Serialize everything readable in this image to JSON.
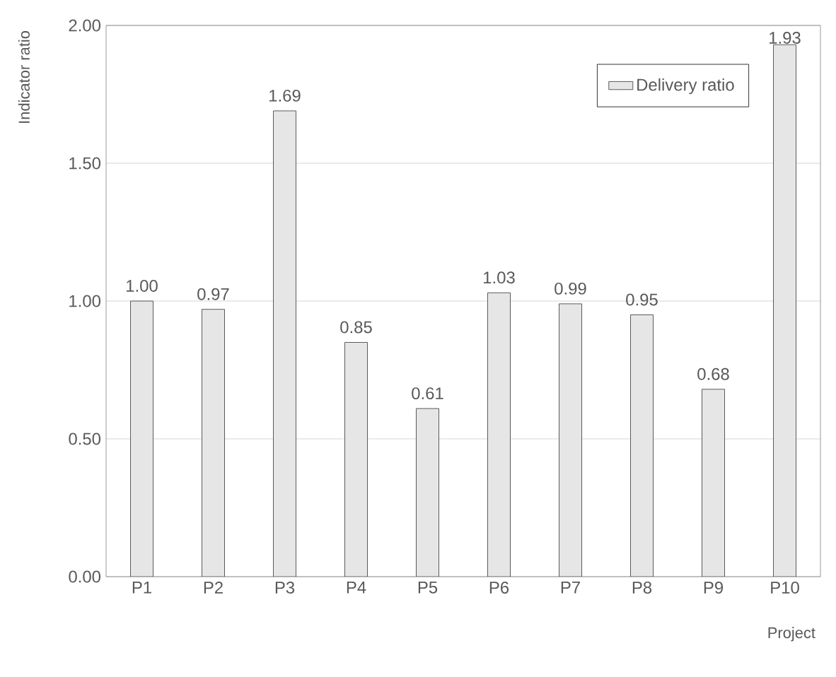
{
  "chart_data": {
    "type": "bar",
    "xlabel": "Project",
    "ylabel": "Indicator ratio",
    "categories": [
      "P1",
      "P2",
      "P3",
      "P4",
      "P5",
      "P6",
      "P7",
      "P8",
      "P9",
      "P10"
    ],
    "series": [
      {
        "name": "Delivery ratio",
        "color": "#e6e6e6",
        "values": [
          1.0,
          0.97,
          1.69,
          0.85,
          0.61,
          1.03,
          0.99,
          0.95,
          0.68,
          1.93
        ],
        "value_labels": [
          "1.00",
          "0.97",
          "1.69",
          "0.85",
          "0.61",
          "1.03",
          "0.99",
          "0.95",
          "0.68",
          "1.93"
        ]
      }
    ],
    "ylim": [
      0,
      2
    ],
    "yticks": [
      {
        "value": 0,
        "label": "0.00"
      },
      {
        "value": 0.5,
        "label": "0.50"
      },
      {
        "value": 1,
        "label": "1.00"
      },
      {
        "value": 1.5,
        "label": "1.50"
      },
      {
        "value": 2,
        "label": "2.00"
      }
    ],
    "grid": "y",
    "legend": "top right"
  }
}
